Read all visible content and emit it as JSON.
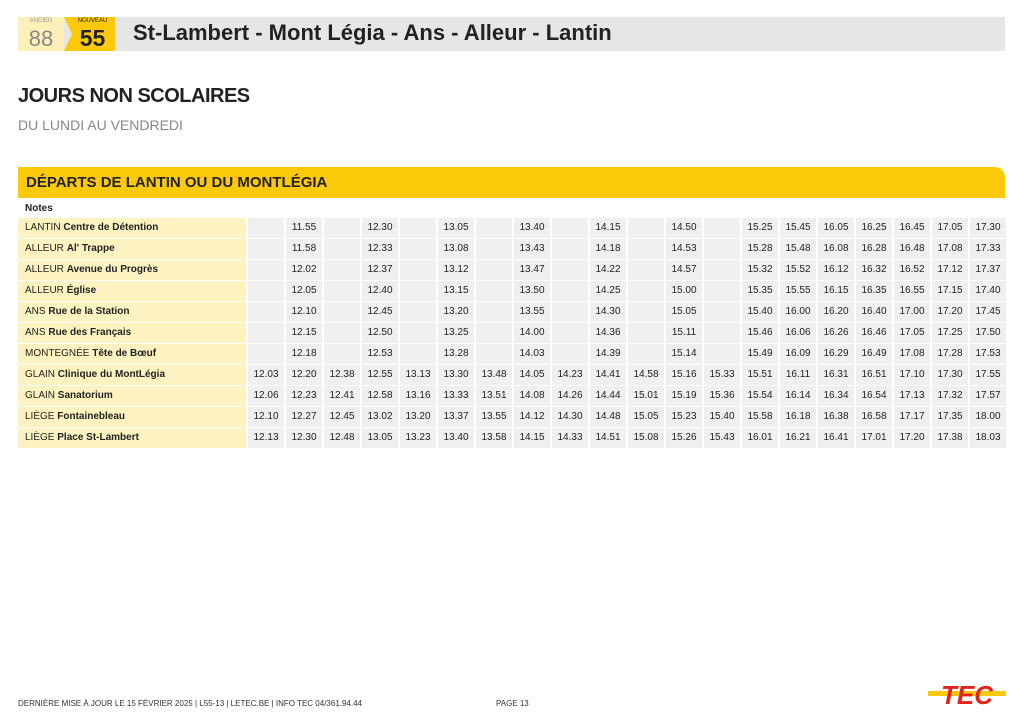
{
  "header": {
    "old_label": "ANCIEN",
    "old_number": "88",
    "new_label": "NOUVEAU",
    "new_number": "55",
    "title": "St-Lambert - Mont Légia - Ans - Alleur - Lantin"
  },
  "heading": "JOURS NON SCOLAIRES",
  "subheading": "DU LUNDI AU VENDREDI",
  "section_title": "DÉPARTS DE LANTIN OU DU MONTLÉGIA",
  "notes_label": "Notes",
  "rows": [
    {
      "locality": "LANTIN",
      "stop": "Centre de Détention",
      "times": [
        "",
        "11.55",
        "",
        "12.30",
        "",
        "13.05",
        "",
        "13.40",
        "",
        "14.15",
        "",
        "14.50",
        "",
        "15.25",
        "15.45",
        "16.05",
        "16.25",
        "16.45",
        "17.05",
        "17.30"
      ]
    },
    {
      "locality": "ALLEUR",
      "stop": "Al' Trappe",
      "times": [
        "",
        "11.58",
        "",
        "12.33",
        "",
        "13.08",
        "",
        "13.43",
        "",
        "14.18",
        "",
        "14.53",
        "",
        "15.28",
        "15.48",
        "16.08",
        "16.28",
        "16.48",
        "17.08",
        "17.33"
      ]
    },
    {
      "locality": "ALLEUR",
      "stop": "Avenue du Progrès",
      "times": [
        "",
        "12.02",
        "",
        "12.37",
        "",
        "13.12",
        "",
        "13.47",
        "",
        "14.22",
        "",
        "14.57",
        "",
        "15.32",
        "15.52",
        "16.12",
        "16.32",
        "16.52",
        "17.12",
        "17.37"
      ]
    },
    {
      "locality": "ALLEUR",
      "stop": "Église",
      "times": [
        "",
        "12.05",
        "",
        "12.40",
        "",
        "13.15",
        "",
        "13.50",
        "",
        "14.25",
        "",
        "15.00",
        "",
        "15.35",
        "15.55",
        "16.15",
        "16.35",
        "16.55",
        "17.15",
        "17.40"
      ]
    },
    {
      "locality": "ANS",
      "stop": "Rue de la Station",
      "times": [
        "",
        "12.10",
        "",
        "12.45",
        "",
        "13.20",
        "",
        "13.55",
        "",
        "14.30",
        "",
        "15.05",
        "",
        "15.40",
        "16.00",
        "16.20",
        "16.40",
        "17.00",
        "17.20",
        "17.45"
      ]
    },
    {
      "locality": "ANS",
      "stop": "Rue des Français",
      "times": [
        "",
        "12.15",
        "",
        "12.50",
        "",
        "13.25",
        "",
        "14.00",
        "",
        "14.36",
        "",
        "15.11",
        "",
        "15.46",
        "16.06",
        "16.26",
        "16.46",
        "17.05",
        "17.25",
        "17.50"
      ]
    },
    {
      "locality": "MONTEGNÉE",
      "stop": "Tête de Bœuf",
      "times": [
        "",
        "12.18",
        "",
        "12.53",
        "",
        "13.28",
        "",
        "14.03",
        "",
        "14.39",
        "",
        "15.14",
        "",
        "15.49",
        "16.09",
        "16.29",
        "16.49",
        "17.08",
        "17.28",
        "17.53"
      ]
    },
    {
      "locality": "GLAIN",
      "stop": "Clinique du MontLégia",
      "times": [
        "12.03",
        "12.20",
        "12.38",
        "12.55",
        "13.13",
        "13.30",
        "13.48",
        "14.05",
        "14.23",
        "14.41",
        "14.58",
        "15.16",
        "15.33",
        "15.51",
        "16.11",
        "16.31",
        "16.51",
        "17.10",
        "17.30",
        "17.55"
      ]
    },
    {
      "locality": "GLAIN",
      "stop": "Sanatorium",
      "times": [
        "12.06",
        "12.23",
        "12.41",
        "12.58",
        "13.16",
        "13.33",
        "13.51",
        "14.08",
        "14.26",
        "14.44",
        "15.01",
        "15.19",
        "15.36",
        "15.54",
        "16.14",
        "16.34",
        "16.54",
        "17.13",
        "17.32",
        "17.57"
      ]
    },
    {
      "locality": "LIÈGE",
      "stop": "Fontainebleau",
      "times": [
        "12.10",
        "12.27",
        "12.45",
        "13.02",
        "13.20",
        "13.37",
        "13.55",
        "14.12",
        "14.30",
        "14.48",
        "15.05",
        "15.23",
        "15.40",
        "15.58",
        "16.18",
        "16.38",
        "16.58",
        "17.17",
        "17.35",
        "18.00"
      ]
    },
    {
      "locality": "LIÈGE",
      "stop": "Place St-Lambert",
      "times": [
        "12.13",
        "12.30",
        "12.48",
        "13.05",
        "13.23",
        "13.40",
        "13.58",
        "14.15",
        "14.33",
        "14.51",
        "15.08",
        "15.26",
        "15.43",
        "16.01",
        "16.21",
        "16.41",
        "17.01",
        "17.20",
        "17.38",
        "18.03"
      ]
    }
  ],
  "footer": {
    "text": "DERNIÈRE MISE À JOUR LE 15 FÉVRIER 2025 | L55-13 | LETEC.BE | INFO TEC 04/361.94.44",
    "page": "PAGE 13",
    "logo": "TEC"
  },
  "colors": {
    "accent": "#fcca0a",
    "stop_bg": "#fdf3c0",
    "logo_red": "#e2231a"
  }
}
